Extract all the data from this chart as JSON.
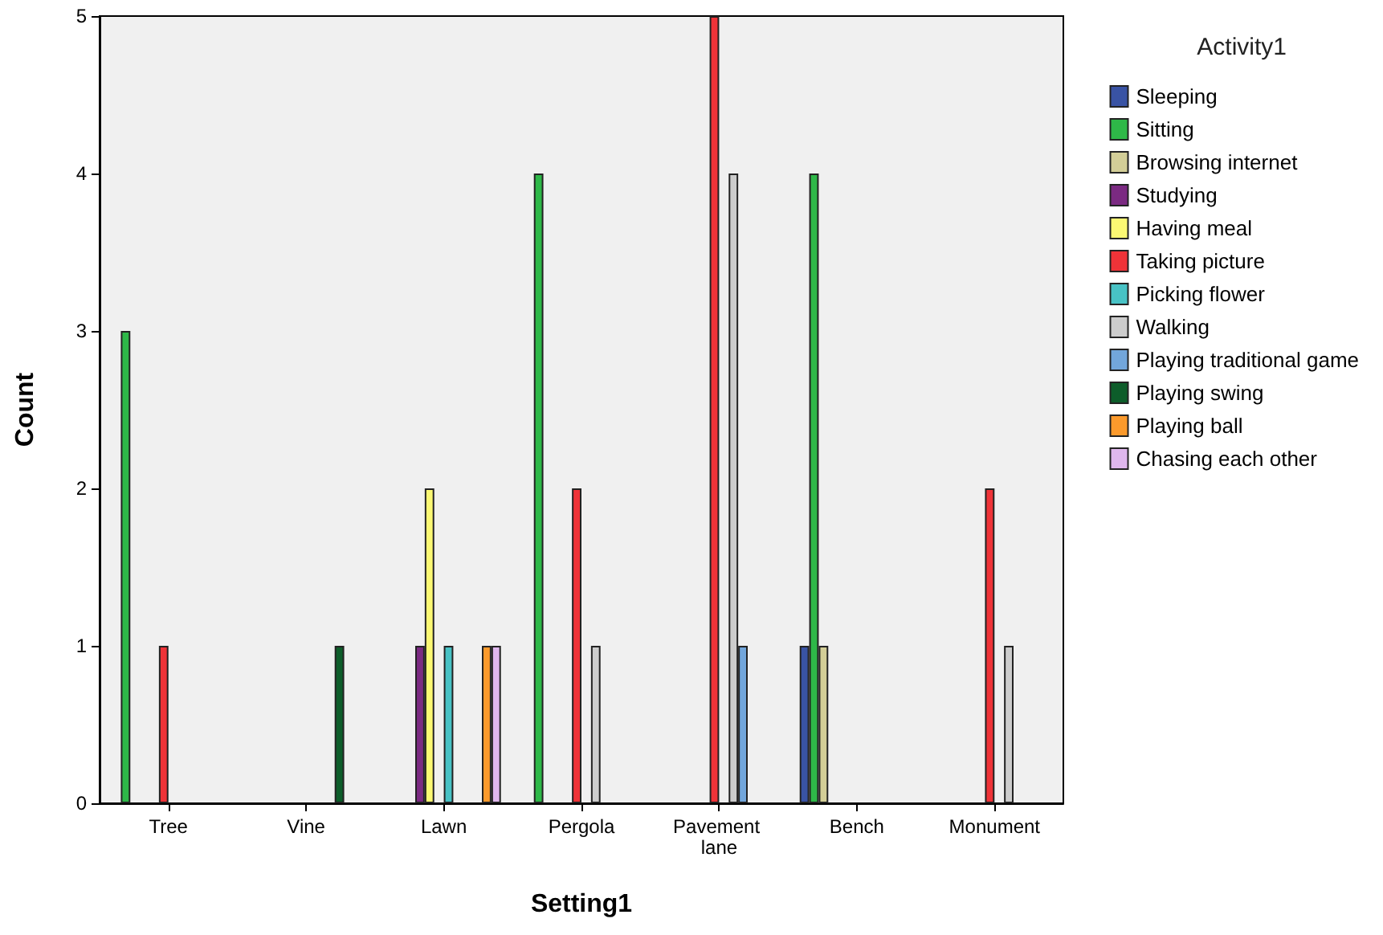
{
  "chart_data": {
    "type": "bar",
    "xlabel": "Setting1",
    "ylabel": "Count",
    "legend_title": "Activity1",
    "categories": [
      "Tree",
      "Vine",
      "Lawn",
      "Pergola",
      "Pavement lane",
      "Bench",
      "Monument"
    ],
    "series": [
      {
        "name": "Sleeping",
        "color": "#3953a4",
        "values": [
          null,
          null,
          null,
          null,
          null,
          1,
          null
        ]
      },
      {
        "name": "Sitting",
        "color": "#2eb848",
        "values": [
          3,
          null,
          null,
          4,
          null,
          4,
          null
        ]
      },
      {
        "name": "Browsing internet",
        "color": "#d3ce97",
        "values": [
          null,
          null,
          null,
          null,
          null,
          1,
          null
        ]
      },
      {
        "name": "Studying",
        "color": "#7b2a82",
        "values": [
          null,
          null,
          1,
          null,
          null,
          null,
          null
        ]
      },
      {
        "name": "Having meal",
        "color": "#fbf873",
        "values": [
          null,
          null,
          2,
          null,
          null,
          null,
          null
        ]
      },
      {
        "name": "Taking picture",
        "color": "#ef3338",
        "values": [
          1,
          null,
          null,
          2,
          5,
          null,
          2
        ]
      },
      {
        "name": "Picking flower",
        "color": "#48c2c5",
        "values": [
          null,
          null,
          1,
          null,
          null,
          null,
          null
        ]
      },
      {
        "name": "Walking",
        "color": "#cccccc",
        "values": [
          null,
          null,
          null,
          1,
          4,
          null,
          1
        ]
      },
      {
        "name": "Playing traditional game",
        "color": "#72a6db",
        "values": [
          null,
          null,
          null,
          null,
          1,
          null,
          null
        ]
      },
      {
        "name": "Playing swing",
        "color": "#0d5d2a",
        "values": [
          null,
          1,
          null,
          null,
          null,
          null,
          null
        ]
      },
      {
        "name": "Playing ball",
        "color": "#fb9a2c",
        "values": [
          null,
          null,
          1,
          null,
          null,
          null,
          null
        ]
      },
      {
        "name": "Chasing each other",
        "color": "#dfb7ed",
        "values": [
          null,
          null,
          1,
          null,
          null,
          null,
          null
        ]
      }
    ],
    "ylim": [
      0,
      5
    ],
    "yticks": [
      0,
      1,
      2,
      3,
      4,
      5
    ],
    "grid": false,
    "legend": "right"
  }
}
